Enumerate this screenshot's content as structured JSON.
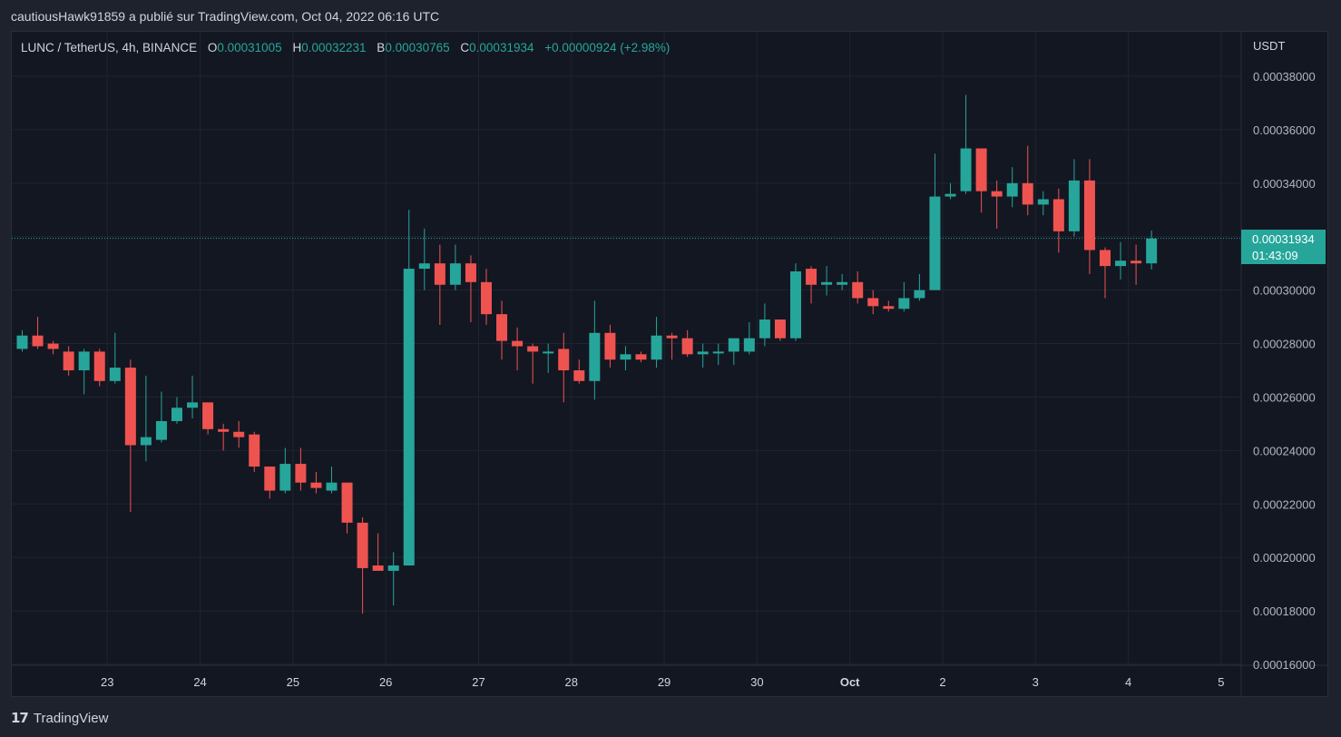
{
  "header": {
    "published_line": "cautiousHawk91859 a publié sur TradingView.com, Oct 04, 2022 06:16 UTC"
  },
  "legend": {
    "symbol": "LUNC / TetherUS, 4h, BINANCE",
    "open_label": "O",
    "open": "0.00031005",
    "high_label": "H",
    "high": "0.00032231",
    "low_label": "B",
    "low": "0.00030765",
    "close_label": "C",
    "close": "0.00031934",
    "change": "+0.00000924 (+2.98%)"
  },
  "price_axis": {
    "currency": "USDT",
    "ticks": [
      "0.00038000",
      "0.00036000",
      "0.00034000",
      "0.00032000",
      "0.00030000",
      "0.00028000",
      "0.00026000",
      "0.00024000",
      "0.00022000",
      "0.00020000",
      "0.00018000",
      "0.00016000"
    ]
  },
  "current_price": {
    "value": "0.00031934",
    "countdown": "01:43:09"
  },
  "footer": {
    "brand": "TradingView",
    "logo_icon": "tradingview-logo-icon"
  },
  "colors": {
    "up": "#26a69a",
    "down": "#ef5350",
    "background": "#131722",
    "grid": "#1f2430"
  },
  "chart_data": {
    "type": "candlestick",
    "interval": "4h",
    "ylim": [
      0.00016,
      0.00038
    ],
    "x_ticks": [
      {
        "label": "23",
        "index": 5.5
      },
      {
        "label": "24",
        "index": 11.5
      },
      {
        "label": "25",
        "index": 17.5
      },
      {
        "label": "26",
        "index": 23.5
      },
      {
        "label": "27",
        "index": 29.5
      },
      {
        "label": "28",
        "index": 35.5
      },
      {
        "label": "29",
        "index": 41.5
      },
      {
        "label": "30",
        "index": 47.5
      },
      {
        "label": "Oct",
        "index": 53.5
      },
      {
        "label": "2",
        "index": 59.5
      },
      {
        "label": "3",
        "index": 65.5
      },
      {
        "label": "4",
        "index": 71.5
      },
      {
        "label": "5",
        "index": 77.5
      }
    ],
    "candles": [
      [
        0.000278,
        0.000283,
        0.000277,
        0.000285
      ],
      [
        0.000283,
        0.000279,
        0.000278,
        0.00029
      ],
      [
        0.00028,
        0.000278,
        0.000276,
        0.000281
      ],
      [
        0.000277,
        0.00027,
        0.000268,
        0.000279
      ],
      [
        0.00027,
        0.000277,
        0.000261,
        0.000278
      ],
      [
        0.000277,
        0.000266,
        0.000264,
        0.000278
      ],
      [
        0.000266,
        0.000271,
        0.000265,
        0.000284
      ],
      [
        0.000271,
        0.000242,
        0.000217,
        0.000274
      ],
      [
        0.000242,
        0.000245,
        0.000236,
        0.000268
      ],
      [
        0.000244,
        0.000251,
        0.000243,
        0.000262
      ],
      [
        0.000251,
        0.000256,
        0.00025,
        0.00026
      ],
      [
        0.000256,
        0.000258,
        0.000252,
        0.000268
      ],
      [
        0.000258,
        0.000248,
        0.000246,
        0.000258
      ],
      [
        0.000248,
        0.000247,
        0.00024,
        0.00025
      ],
      [
        0.000247,
        0.000245,
        0.000241,
        0.000251
      ],
      [
        0.000246,
        0.000234,
        0.000232,
        0.000247
      ],
      [
        0.000234,
        0.000225,
        0.000222,
        0.000234
      ],
      [
        0.000225,
        0.000235,
        0.000224,
        0.000241
      ],
      [
        0.000235,
        0.000228,
        0.000225,
        0.000241
      ],
      [
        0.000228,
        0.000226,
        0.000224,
        0.000232
      ],
      [
        0.000225,
        0.000228,
        0.000224,
        0.000234
      ],
      [
        0.000228,
        0.000213,
        0.000209,
        0.000228
      ],
      [
        0.000213,
        0.000196,
        0.000179,
        0.000215
      ],
      [
        0.000197,
        0.000195,
        0.000195,
        0.000209
      ],
      [
        0.000195,
        0.000197,
        0.000182,
        0.000202
      ],
      [
        0.000197,
        0.000308,
        0.000197,
        0.00033
      ],
      [
        0.000308,
        0.00031,
        0.0003,
        0.000323
      ],
      [
        0.00031,
        0.000302,
        0.000287,
        0.000317
      ],
      [
        0.000302,
        0.00031,
        0.0003,
        0.000317
      ],
      [
        0.00031,
        0.000303,
        0.000288,
        0.000313
      ],
      [
        0.000303,
        0.000291,
        0.000287,
        0.000308
      ],
      [
        0.000291,
        0.000281,
        0.000274,
        0.000296
      ],
      [
        0.000281,
        0.000279,
        0.00027,
        0.000286
      ],
      [
        0.000279,
        0.000277,
        0.000265,
        0.00028
      ],
      [
        0.000277,
        0.000277,
        0.000269,
        0.00028
      ],
      [
        0.000278,
        0.00027,
        0.000258,
        0.000284
      ],
      [
        0.00027,
        0.000266,
        0.000265,
        0.000274
      ],
      [
        0.000266,
        0.000284,
        0.000259,
        0.000296
      ],
      [
        0.000284,
        0.000274,
        0.000271,
        0.000287
      ],
      [
        0.000274,
        0.000276,
        0.00027,
        0.000279
      ],
      [
        0.000276,
        0.000274,
        0.000273,
        0.000277
      ],
      [
        0.000274,
        0.000283,
        0.000271,
        0.00029
      ],
      [
        0.000283,
        0.000282,
        0.000274,
        0.000284
      ],
      [
        0.000282,
        0.000276,
        0.000275,
        0.000285
      ],
      [
        0.000276,
        0.000277,
        0.000271,
        0.00028
      ],
      [
        0.000277,
        0.000277,
        0.000272,
        0.00028
      ],
      [
        0.000277,
        0.000282,
        0.000272,
        0.00028
      ],
      [
        0.000277,
        0.000282,
        0.000276,
        0.000288
      ],
      [
        0.000282,
        0.000289,
        0.000279,
        0.000295
      ],
      [
        0.000289,
        0.000282,
        0.000281,
        0.000289
      ],
      [
        0.000282,
        0.000307,
        0.000281,
        0.00031
      ],
      [
        0.000308,
        0.000302,
        0.000295,
        0.000309
      ],
      [
        0.000302,
        0.000303,
        0.000298,
        0.000309
      ],
      [
        0.000302,
        0.000303,
        0.0003,
        0.000306
      ],
      [
        0.000303,
        0.000297,
        0.000295,
        0.000307
      ],
      [
        0.000297,
        0.000294,
        0.000291,
        0.0003
      ],
      [
        0.000294,
        0.000293,
        0.000292,
        0.000296
      ],
      [
        0.000293,
        0.000297,
        0.000292,
        0.000303
      ],
      [
        0.000297,
        0.0003,
        0.000296,
        0.000306
      ],
      [
        0.0003,
        0.000335,
        0.0003,
        0.000351
      ],
      [
        0.000335,
        0.000336,
        0.000334,
        0.00034
      ],
      [
        0.000337,
        0.000353,
        0.000336,
        0.000373
      ],
      [
        0.000353,
        0.000337,
        0.000329,
        0.000353
      ],
      [
        0.000337,
        0.000335,
        0.000323,
        0.000341
      ],
      [
        0.000335,
        0.00034,
        0.000331,
        0.000346
      ],
      [
        0.00034,
        0.000332,
        0.000328,
        0.000354
      ],
      [
        0.000332,
        0.000334,
        0.000328,
        0.000337
      ],
      [
        0.000334,
        0.000322,
        0.000314,
        0.000338
      ],
      [
        0.000322,
        0.000341,
        0.00032,
        0.000349
      ],
      [
        0.000341,
        0.000315,
        0.000306,
        0.000349
      ],
      [
        0.000315,
        0.000309,
        0.000297,
        0.000316
      ],
      [
        0.000309,
        0.000311,
        0.000304,
        0.000318
      ],
      [
        0.000311,
        0.00031,
        0.000302,
        0.000317
      ],
      [
        0.00031,
        0.0003193,
        0.0003077,
        0.0003223
      ]
    ]
  }
}
